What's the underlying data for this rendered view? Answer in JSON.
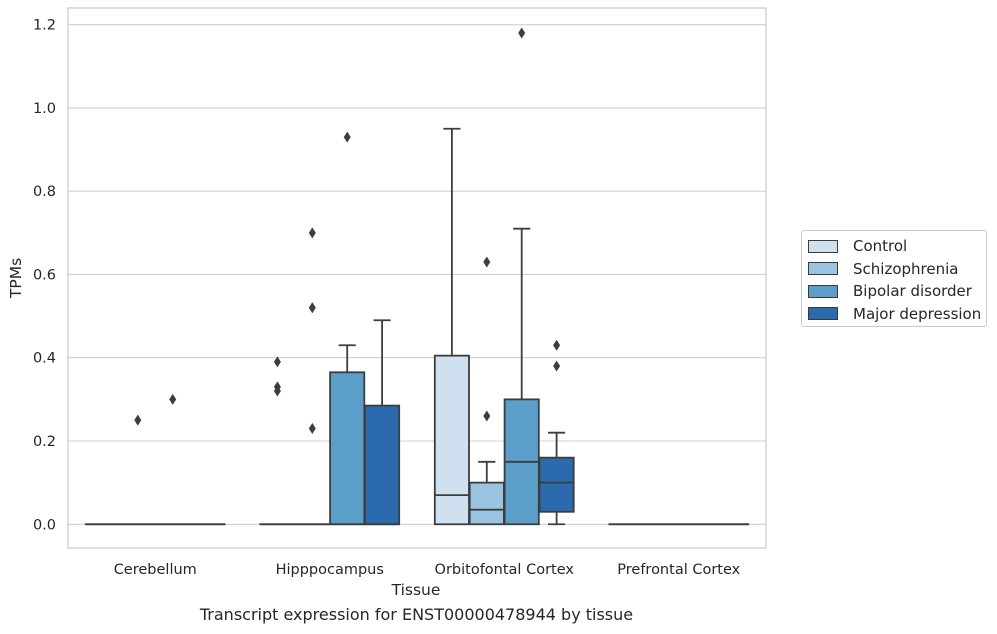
{
  "chart_data": {
    "type": "box",
    "xlabel": "Tissue",
    "ylabel": "TPMs",
    "caption": "Transcript expression for ENST00000478944 by tissue",
    "categories": [
      "Cerebellum",
      "Hipppocampus",
      "Orbitofontal Cortex",
      "Prefrontal Cortex"
    ],
    "ylim": [
      -0.057,
      1.24
    ],
    "yticks": [
      0.0,
      0.2,
      0.4,
      0.6,
      0.8,
      1.0,
      1.2
    ],
    "ytick_labels": [
      "0.0",
      "0.2",
      "0.4",
      "0.6",
      "0.8",
      "1.0",
      "1.2"
    ],
    "grid": "horizontal",
    "legend_position": "right",
    "series": [
      {
        "name": "Control",
        "color": "#cfe0f0"
      },
      {
        "name": "Schizophrenia",
        "color": "#9bc4e0"
      },
      {
        "name": "Bipolar disorder",
        "color": "#5a9ec9"
      },
      {
        "name": "Major depression",
        "color": "#2a6aad"
      }
    ],
    "boxes": [
      {
        "category": 0,
        "series": 0,
        "q1": 0,
        "median": 0,
        "q3": 0,
        "whisker_low": 0,
        "whisker_high": 0,
        "outliers": []
      },
      {
        "category": 0,
        "series": 1,
        "q1": 0,
        "median": 0,
        "q3": 0,
        "whisker_low": 0,
        "whisker_high": 0,
        "outliers": [
          0.25
        ]
      },
      {
        "category": 0,
        "series": 2,
        "q1": 0,
        "median": 0,
        "q3": 0,
        "whisker_low": 0,
        "whisker_high": 0,
        "outliers": [
          0.3
        ]
      },
      {
        "category": 0,
        "series": 3,
        "q1": 0,
        "median": 0,
        "q3": 0,
        "whisker_low": 0,
        "whisker_high": 0,
        "outliers": []
      },
      {
        "category": 1,
        "series": 0,
        "q1": 0,
        "median": 0,
        "q3": 0,
        "whisker_low": 0,
        "whisker_high": 0,
        "outliers": [
          0.39,
          0.33,
          0.32
        ]
      },
      {
        "category": 1,
        "series": 1,
        "q1": 0,
        "median": 0,
        "q3": 0,
        "whisker_low": 0,
        "whisker_high": 0,
        "outliers": [
          0.7,
          0.52,
          0.23
        ]
      },
      {
        "category": 1,
        "series": 2,
        "q1": 0,
        "median": 0,
        "q3": 0.365,
        "whisker_low": 0,
        "whisker_high": 0.43,
        "outliers": [
          0.93
        ]
      },
      {
        "category": 1,
        "series": 3,
        "q1": 0,
        "median": 0,
        "q3": 0.285,
        "whisker_low": 0,
        "whisker_high": 0.49,
        "outliers": []
      },
      {
        "category": 2,
        "series": 0,
        "q1": 0,
        "median": 0.07,
        "q3": 0.405,
        "whisker_low": 0,
        "whisker_high": 0.95,
        "outliers": []
      },
      {
        "category": 2,
        "series": 1,
        "q1": 0,
        "median": 0.035,
        "q3": 0.1,
        "whisker_low": 0,
        "whisker_high": 0.15,
        "outliers": [
          0.63,
          0.26
        ]
      },
      {
        "category": 2,
        "series": 2,
        "q1": 0,
        "median": 0.15,
        "q3": 0.3,
        "whisker_low": 0,
        "whisker_high": 0.71,
        "outliers": [
          1.18
        ]
      },
      {
        "category": 2,
        "series": 3,
        "q1": 0.03,
        "median": 0.1,
        "q3": 0.16,
        "whisker_low": 0,
        "whisker_high": 0.22,
        "outliers": [
          0.43,
          0.38
        ]
      },
      {
        "category": 3,
        "series": 0,
        "q1": 0,
        "median": 0,
        "q3": 0,
        "whisker_low": 0,
        "whisker_high": 0,
        "outliers": []
      },
      {
        "category": 3,
        "series": 1,
        "q1": 0,
        "median": 0,
        "q3": 0,
        "whisker_low": 0,
        "whisker_high": 0,
        "outliers": []
      },
      {
        "category": 3,
        "series": 2,
        "q1": 0,
        "median": 0,
        "q3": 0,
        "whisker_low": 0,
        "whisker_high": 0,
        "outliers": []
      },
      {
        "category": 3,
        "series": 3,
        "q1": 0,
        "median": 0,
        "q3": 0,
        "whisker_low": 0,
        "whisker_high": 0,
        "outliers": []
      }
    ]
  },
  "legend": {
    "items": [
      {
        "label": "Control"
      },
      {
        "label": "Schizophrenia"
      },
      {
        "label": "Bipolar disorder"
      },
      {
        "label": "Major depression"
      }
    ]
  }
}
